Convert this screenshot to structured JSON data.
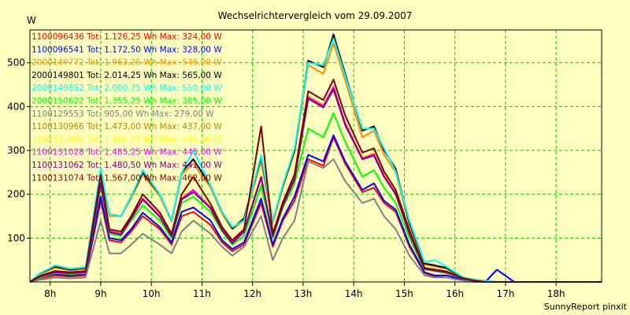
{
  "chart_data": {
    "type": "line",
    "title": "Wechselrichtervergleich vom 29.09.2007",
    "ylabel": "W",
    "footer": "SunnyReport pinxit",
    "x_ticks": [
      "8h",
      "9h",
      "10h",
      "11h",
      "12h",
      "13h",
      "14h",
      "15h",
      "16h",
      "17h",
      "18h"
    ],
    "y_ticks": [
      100,
      200,
      300,
      400,
      500
    ],
    "xlim": [
      7.6,
      18.9
    ],
    "ylim": [
      0,
      575
    ],
    "grid": true,
    "legend_position": "top-left",
    "x": [
      7.6,
      7.8,
      8.1,
      8.4,
      8.7,
      9.0,
      9.17,
      9.4,
      9.6,
      9.83,
      10.17,
      10.4,
      10.6,
      10.83,
      11.17,
      11.4,
      11.6,
      11.83,
      12.17,
      12.4,
      12.6,
      12.83,
      13.1,
      13.4,
      13.6,
      13.83,
      14.17,
      14.4,
      14.6,
      14.83,
      15.1,
      15.4,
      15.6,
      15.83,
      16.17,
      16.4,
      16.6,
      16.83,
      17.17,
      17.4,
      17.6,
      17.83,
      18.17,
      18.4,
      18.6,
      18.9
    ],
    "series": [
      {
        "name": "1100096436 Tot: 1.126,25 Wh Max: 324,00 W",
        "color": "#ff0000",
        "values": [
          0,
          8,
          15,
          12,
          15,
          185,
          95,
          90,
          115,
          150,
          120,
          85,
          150,
          160,
          130,
          90,
          70,
          85,
          180,
          80,
          140,
          185,
          280,
          265,
          330,
          270,
          205,
          215,
          180,
          160,
          80,
          20,
          12,
          15,
          5,
          0,
          0,
          0,
          0,
          0,
          0,
          0,
          0,
          0,
          0,
          0
        ]
      },
      {
        "name": "1100096541 Tot: 1.172,50 Wh Max: 328,00 W",
        "color": "#0000ff",
        "values": [
          0,
          10,
          18,
          15,
          18,
          195,
          100,
          95,
          120,
          158,
          125,
          90,
          160,
          170,
          140,
          95,
          75,
          90,
          190,
          85,
          145,
          195,
          290,
          275,
          335,
          275,
          210,
          225,
          185,
          165,
          85,
          22,
          15,
          15,
          5,
          0,
          0,
          28,
          0,
          0,
          0,
          0,
          0,
          0,
          0,
          0
        ]
      },
      {
        "name": "2000149772 Tot: 1.963,25 Wh Max: 546,00 W",
        "color": "#ff8c00",
        "values": [
          0,
          18,
          32,
          26,
          30,
          250,
          150,
          150,
          190,
          245,
          195,
          138,
          245,
          270,
          215,
          155,
          120,
          140,
          275,
          135,
          215,
          295,
          495,
          475,
          545,
          460,
          330,
          345,
          290,
          250,
          130,
          40,
          35,
          30,
          8,
          3,
          1,
          0,
          0,
          0,
          0,
          0,
          0,
          0,
          0,
          0
        ]
      },
      {
        "name": "2000149801 Tot: 2.014,25 Wh Max: 565,00 W",
        "color": "#000000",
        "values": [
          0,
          20,
          35,
          28,
          32,
          255,
          155,
          150,
          195,
          250,
          200,
          140,
          250,
          280,
          220,
          160,
          122,
          145,
          285,
          140,
          220,
          300,
          505,
          490,
          565,
          475,
          345,
          355,
          300,
          258,
          135,
          42,
          38,
          32,
          10,
          5,
          2,
          0,
          0,
          0,
          0,
          0,
          0,
          0,
          0,
          0
        ]
      },
      {
        "name": "2000149852 Tot: 2.000,75 Wh Max: 550,00 W",
        "color": "#00ffff",
        "values": [
          0,
          20,
          38,
          30,
          34,
          260,
          155,
          150,
          195,
          255,
          200,
          140,
          250,
          300,
          220,
          160,
          125,
          140,
          290,
          140,
          222,
          305,
          500,
          495,
          555,
          470,
          350,
          350,
          305,
          252,
          140,
          45,
          50,
          35,
          10,
          5,
          3,
          0,
          0,
          0,
          0,
          0,
          0,
          0,
          0,
          0
        ]
      },
      {
        "name": "2000150622 Tot: 1.355,25 Wh Max: 385,00 W",
        "color": "#00ff00",
        "values": [
          0,
          10,
          20,
          18,
          20,
          220,
          110,
          105,
          140,
          175,
          140,
          100,
          180,
          195,
          160,
          115,
          85,
          105,
          220,
          100,
          170,
          225,
          350,
          330,
          385,
          320,
          240,
          255,
          215,
          180,
          100,
          28,
          25,
          20,
          8,
          2,
          0,
          0,
          0,
          0,
          0,
          0,
          0,
          0,
          0,
          0
        ]
      },
      {
        "name": "1100129553 Tot: 905,00 Wh Max: 279,00 W",
        "color": "#808080",
        "values": [
          0,
          5,
          10,
          8,
          10,
          140,
          65,
          65,
          85,
          110,
          85,
          65,
          115,
          140,
          110,
          80,
          60,
          80,
          150,
          50,
          100,
          140,
          275,
          260,
          280,
          230,
          180,
          190,
          150,
          120,
          60,
          15,
          10,
          10,
          3,
          0,
          0,
          0,
          0,
          0,
          0,
          0,
          0,
          0,
          0,
          0
        ]
      },
      {
        "name": "1100130966 Tot: 1.473,00 Wh Max: 437,00 W",
        "color": "#b8860b",
        "values": [
          0,
          12,
          22,
          20,
          22,
          230,
          115,
          110,
          145,
          190,
          150,
          105,
          190,
          210,
          170,
          120,
          90,
          115,
          240,
          105,
          175,
          235,
          420,
          400,
          437,
          360,
          280,
          290,
          240,
          200,
          110,
          30,
          25,
          22,
          8,
          2,
          0,
          0,
          0,
          0,
          0,
          0,
          0,
          0,
          0,
          0
        ]
      },
      {
        "name": "1100131006 Tot: 1.486,25 Wh Max: 444,00 W",
        "color": "#ffff00",
        "values": [
          0,
          12,
          24,
          20,
          24,
          232,
          118,
          112,
          148,
          192,
          152,
          108,
          192,
          245,
          172,
          122,
          92,
          118,
          242,
          108,
          178,
          238,
          425,
          405,
          444,
          365,
          285,
          295,
          245,
          205,
          115,
          32,
          28,
          24,
          8,
          2,
          0,
          0,
          0,
          0,
          0,
          0,
          0,
          0,
          0,
          0
        ]
      },
      {
        "name": "1100131028 Tot: 1.485,25 Wh Max: 445,00 W",
        "color": "#ff00ff",
        "values": [
          0,
          12,
          22,
          20,
          22,
          228,
          116,
          110,
          146,
          190,
          150,
          106,
          190,
          210,
          170,
          120,
          90,
          116,
          240,
          106,
          176,
          236,
          422,
          402,
          445,
          362,
          282,
          292,
          242,
          202,
          112,
          30,
          26,
          22,
          8,
          2,
          0,
          0,
          0,
          0,
          0,
          0,
          0,
          0,
          0,
          0
        ]
      },
      {
        "name": "1100131062 Tot: 1.480,50 Wh Max: 441,00 W",
        "color": "#800080",
        "values": [
          0,
          12,
          22,
          20,
          22,
          225,
          114,
          108,
          144,
          188,
          148,
          104,
          188,
          205,
          168,
          118,
          88,
          114,
          238,
          104,
          174,
          234,
          418,
          398,
          441,
          358,
          280,
          288,
          240,
          200,
          110,
          30,
          26,
          22,
          8,
          2,
          0,
          0,
          0,
          0,
          0,
          0,
          0,
          0,
          0,
          0
        ]
      },
      {
        "name": "1100131074 Tot: 1.567,00 Wh Max: 462,00 W",
        "color": "#800000",
        "values": [
          0,
          14,
          25,
          22,
          25,
          245,
          120,
          115,
          150,
          200,
          158,
          110,
          200,
          240,
          178,
          125,
          95,
          120,
          355,
          110,
          182,
          245,
          435,
          415,
          462,
          380,
          295,
          305,
          252,
          210,
          118,
          32,
          28,
          24,
          8,
          3,
          0,
          0,
          0,
          0,
          0,
          0,
          0,
          0,
          0,
          0
        ]
      }
    ]
  }
}
